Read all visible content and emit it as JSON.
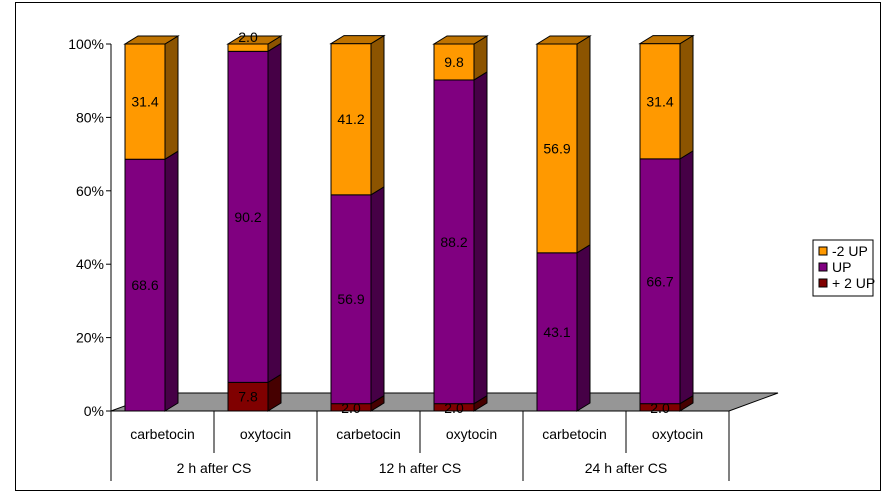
{
  "chart_data": {
    "type": "bar",
    "stacked": true,
    "percent_stacked": true,
    "three_d": true,
    "categories": [
      "carbetocin",
      "oxytocin",
      "carbetocin",
      "oxytocin",
      "carbetocin",
      "oxytocin"
    ],
    "groups": [
      {
        "label": "2 h after CS",
        "span": [
          0,
          1
        ]
      },
      {
        "label": "12 h after CS",
        "span": [
          2,
          3
        ]
      },
      {
        "label": "24 h after CS",
        "span": [
          4,
          5
        ]
      }
    ],
    "series": [
      {
        "name": "+ 2 UP",
        "color": "#800000",
        "values": [
          0.0,
          7.8,
          2.0,
          2.0,
          0.0,
          2.0
        ],
        "labels": [
          "",
          "7.8",
          "2.0",
          "2.0",
          "",
          "2.0"
        ]
      },
      {
        "name": "UP",
        "color": "#800080",
        "values": [
          68.6,
          90.2,
          56.9,
          88.2,
          43.1,
          66.7
        ],
        "labels": [
          "68.6",
          "90.2",
          "56.9",
          "88.2",
          "43.1",
          "66.7"
        ]
      },
      {
        "name": "-2 UP",
        "color": "#FF9900",
        "values": [
          31.4,
          2.0,
          41.2,
          9.8,
          56.9,
          31.4
        ],
        "labels": [
          "31.4",
          "2.0",
          "41.2",
          "9.8",
          "56.9",
          "31.4"
        ]
      }
    ],
    "ylim": [
      0,
      100
    ],
    "yticks": [
      "0%",
      "20%",
      "40%",
      "60%",
      "80%",
      "100%"
    ],
    "legend": {
      "position": "right",
      "order": [
        "-2 UP",
        "UP",
        "+ 2 UP"
      ]
    },
    "title": "",
    "xlabel": "",
    "ylabel": "",
    "grid": false
  }
}
